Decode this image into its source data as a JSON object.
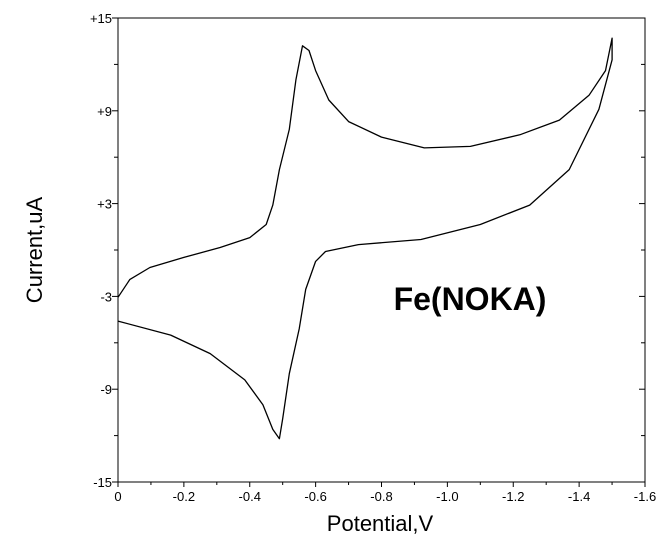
{
  "chart_data": {
    "type": "line",
    "xlabel": "Potential,V",
    "ylabel": "Current,uA",
    "annotation": "Fe(NOKA)",
    "color": "#000000",
    "x": [
      0,
      -0.036,
      -0.097,
      -0.2,
      -0.31,
      -0.4,
      -0.45,
      -0.47,
      -0.49,
      -0.52,
      -0.54,
      -0.56,
      -0.58,
      -0.6,
      -0.64,
      -0.7,
      -0.8,
      -0.93,
      -1.07,
      -1.22,
      -1.34,
      -1.43,
      -1.48,
      -1.5,
      -1.5,
      -1.46,
      -1.37,
      -1.25,
      -1.1,
      -0.92,
      -0.73,
      -0.63,
      -0.6,
      -0.57,
      -0.55,
      -0.52,
      -0.5,
      -0.49,
      -0.47,
      -0.44,
      -0.385,
      -0.28,
      -0.16,
      0
    ],
    "values": [
      -3.06,
      -1.9,
      -1.13,
      -0.48,
      0.16,
      0.8,
      1.65,
      2.9,
      5.2,
      7.8,
      11,
      13.2,
      12.9,
      11.6,
      9.7,
      8.3,
      7.3,
      6.6,
      6.7,
      7.45,
      8.4,
      10,
      11.6,
      13.7,
      12.3,
      9.1,
      5.2,
      2.9,
      1.65,
      0.68,
      0.35,
      -0.1,
      -0.74,
      -2.55,
      -5.1,
      -8,
      -10.9,
      -12.2,
      -11.6,
      -10,
      -8.4,
      -6.7,
      -5.5,
      -4.6
    ],
    "xlim": [
      0,
      -1.6
    ],
    "xticks": [
      0,
      -0.2,
      -0.4,
      -0.6,
      -0.8,
      {
        "value": -1,
        "label": "-1.0"
      },
      -1.2,
      -1.4,
      -1.6
    ],
    "ylim": [
      -15,
      15
    ],
    "yticks": [
      {
        "value": -15,
        "label": "-15"
      },
      {
        "value": -9,
        "label": "-9"
      },
      {
        "value": -3,
        "label": "-3"
      },
      {
        "value": 3,
        "label": "+3"
      },
      {
        "value": 9,
        "label": "+9"
      },
      {
        "value": 15,
        "label": "+15"
      }
    ]
  }
}
